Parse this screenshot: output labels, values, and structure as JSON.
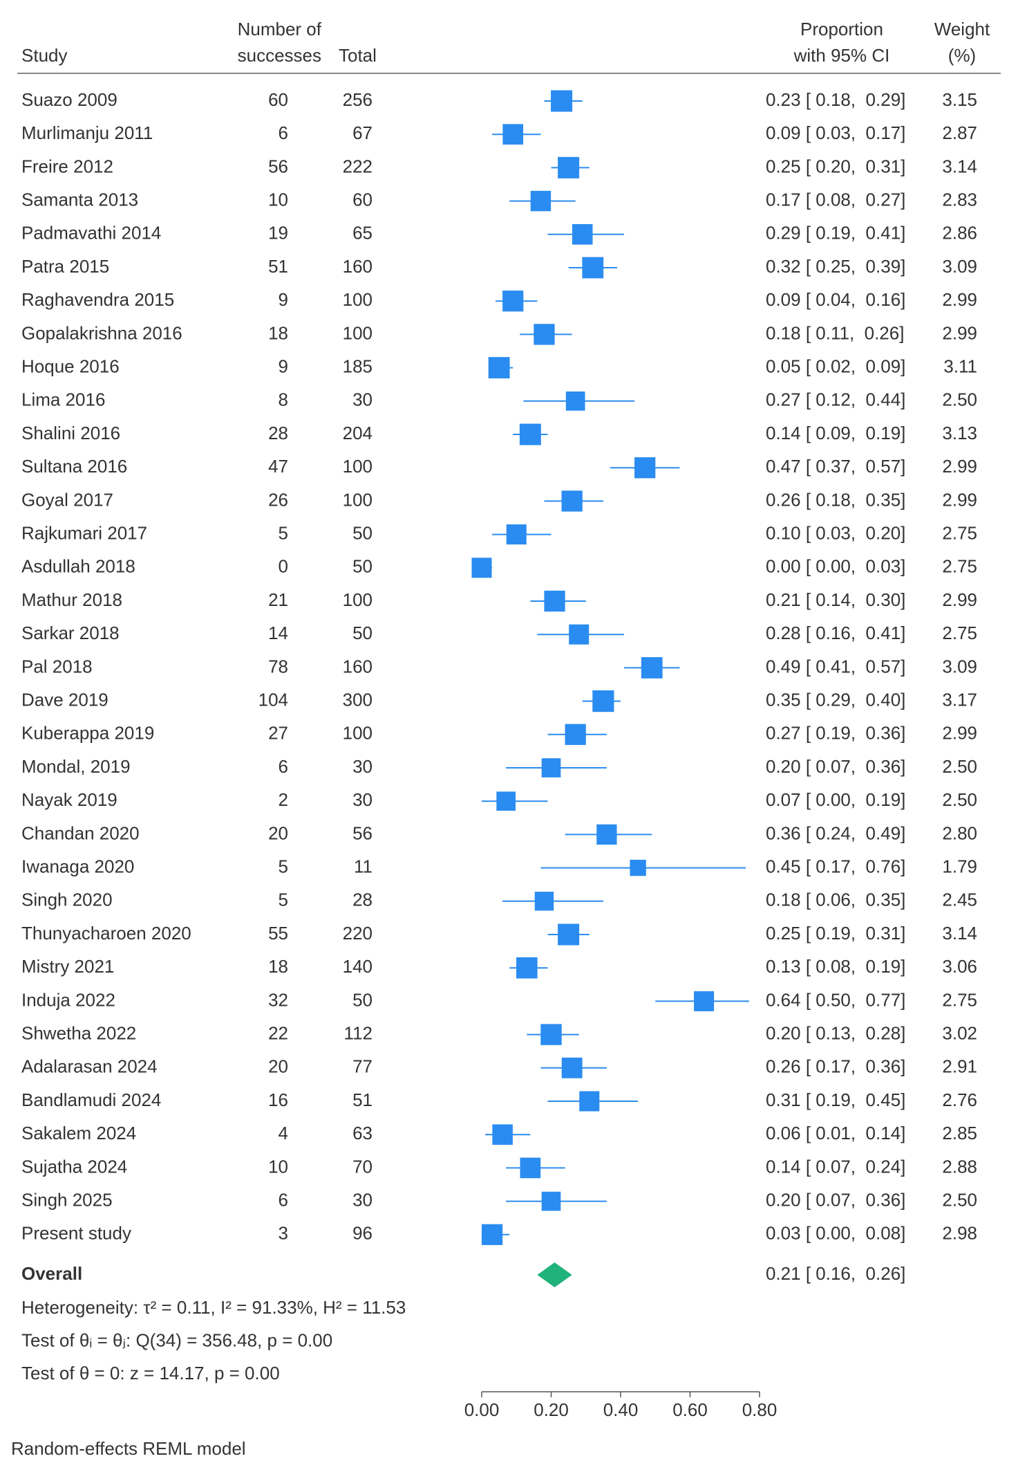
{
  "chart_data": {
    "type": "forest",
    "headers": {
      "study": "Study",
      "successes": [
        "Number of",
        "successes"
      ],
      "total": "Total",
      "ci": [
        "Proportion",
        "with 95% CI"
      ],
      "weight": [
        "Weight",
        "(%)"
      ]
    },
    "categories": [
      "Suazo 2009",
      "Murlimanju 2011",
      "Freire 2012",
      "Samanta 2013",
      "Padmavathi 2014",
      "Patra 2015",
      "Raghavendra 2015",
      "Gopalakrishna 2016",
      "Hoque 2016",
      "Lima 2016",
      "Shalini 2016",
      "Sultana 2016",
      "Goyal 2017",
      "Rajkumari 2017",
      "Asdullah 2018",
      "Mathur 2018",
      "Sarkar 2018",
      "Pal 2018",
      "Dave 2019",
      "Kuberappa 2019",
      "Mondal, 2019",
      "Nayak 2019",
      "Chandan 2020",
      "Iwanaga 2020",
      "Singh 2020",
      "Thunyacharoen 2020",
      "Mistry 2021",
      "Induja 2022",
      "Shwetha 2022",
      "Adalarasan 2024",
      "Bandlamudi 2024",
      "Sakalem 2024",
      "Sujatha 2024",
      "Singh 2025",
      "Present study"
    ],
    "successes": [
      60,
      6,
      56,
      10,
      19,
      51,
      9,
      18,
      9,
      8,
      28,
      47,
      26,
      5,
      0,
      21,
      14,
      78,
      104,
      27,
      6,
      2,
      20,
      5,
      5,
      55,
      18,
      32,
      22,
      20,
      16,
      4,
      10,
      6,
      3
    ],
    "totals": [
      256,
      67,
      222,
      60,
      65,
      160,
      100,
      100,
      185,
      30,
      204,
      100,
      100,
      50,
      50,
      100,
      50,
      160,
      300,
      100,
      30,
      30,
      56,
      11,
      28,
      220,
      140,
      50,
      112,
      77,
      51,
      63,
      70,
      30,
      96
    ],
    "values": [
      0.23,
      0.09,
      0.25,
      0.17,
      0.29,
      0.32,
      0.09,
      0.18,
      0.05,
      0.27,
      0.14,
      0.47,
      0.26,
      0.1,
      0.0,
      0.21,
      0.28,
      0.49,
      0.35,
      0.27,
      0.2,
      0.07,
      0.36,
      0.45,
      0.18,
      0.25,
      0.13,
      0.64,
      0.2,
      0.26,
      0.31,
      0.06,
      0.14,
      0.2,
      0.03
    ],
    "ci_low": [
      0.18,
      0.03,
      0.2,
      0.08,
      0.19,
      0.25,
      0.04,
      0.11,
      0.02,
      0.12,
      0.09,
      0.37,
      0.18,
      0.03,
      0.0,
      0.14,
      0.16,
      0.41,
      0.29,
      0.19,
      0.07,
      0.0,
      0.24,
      0.17,
      0.06,
      0.19,
      0.08,
      0.5,
      0.13,
      0.17,
      0.19,
      0.01,
      0.07,
      0.07,
      0.0
    ],
    "ci_high": [
      0.29,
      0.17,
      0.31,
      0.27,
      0.41,
      0.39,
      0.16,
      0.26,
      0.09,
      0.44,
      0.19,
      0.57,
      0.35,
      0.2,
      0.03,
      0.3,
      0.41,
      0.57,
      0.4,
      0.36,
      0.36,
      0.19,
      0.49,
      0.76,
      0.35,
      0.31,
      0.19,
      0.77,
      0.28,
      0.36,
      0.45,
      0.14,
      0.24,
      0.36,
      0.08
    ],
    "value_labels": [
      "0.23 [ 0.18,  0.29]",
      "0.09 [ 0.03,  0.17]",
      "0.25 [ 0.20,  0.31]",
      "0.17 [ 0.08,  0.27]",
      "0.29 [ 0.19,  0.41]",
      "0.32 [ 0.25,  0.39]",
      "0.09 [ 0.04,  0.16]",
      "0.18 [ 0.11,  0.26]",
      "0.05 [ 0.02,  0.09]",
      "0.27 [ 0.12,  0.44]",
      "0.14 [ 0.09,  0.19]",
      "0.47 [ 0.37,  0.57]",
      "0.26 [ 0.18,  0.35]",
      "0.10 [ 0.03,  0.20]",
      "0.00 [ 0.00,  0.03]",
      "0.21 [ 0.14,  0.30]",
      "0.28 [ 0.16,  0.41]",
      "0.49 [ 0.41,  0.57]",
      "0.35 [ 0.29,  0.40]",
      "0.27 [ 0.19,  0.36]",
      "0.20 [ 0.07,  0.36]",
      "0.07 [ 0.00,  0.19]",
      "0.36 [ 0.24,  0.49]",
      "0.45 [ 0.17,  0.76]",
      "0.18 [ 0.06,  0.35]",
      "0.25 [ 0.19,  0.31]",
      "0.13 [ 0.08,  0.19]",
      "0.64 [ 0.50,  0.77]",
      "0.20 [ 0.13,  0.28]",
      "0.26 [ 0.17,  0.36]",
      "0.31 [ 0.19,  0.45]",
      "0.06 [ 0.01,  0.14]",
      "0.14 [ 0.07,  0.24]",
      "0.20 [ 0.07,  0.36]",
      "0.03 [ 0.00,  0.08]"
    ],
    "weights": [
      3.15,
      2.87,
      3.14,
      2.83,
      2.86,
      3.09,
      2.99,
      2.99,
      3.11,
      2.5,
      3.13,
      2.99,
      2.99,
      2.75,
      2.75,
      2.99,
      2.75,
      3.09,
      3.17,
      2.99,
      2.5,
      2.5,
      2.8,
      1.79,
      2.45,
      3.14,
      3.06,
      2.75,
      3.02,
      2.91,
      2.76,
      2.85,
      2.88,
      2.5,
      2.98
    ],
    "weight_labels": [
      "3.15",
      "2.87",
      "3.14",
      "2.83",
      "2.86",
      "3.09",
      "2.99",
      "2.99",
      "3.11",
      "2.50",
      "3.13",
      "2.99",
      "2.99",
      "2.75",
      "2.75",
      "2.99",
      "2.75",
      "3.09",
      "3.17",
      "2.99",
      "2.50",
      "2.50",
      "2.80",
      "1.79",
      "2.45",
      "3.14",
      "3.06",
      "2.75",
      "3.02",
      "2.91",
      "2.76",
      "2.85",
      "2.88",
      "2.50",
      "2.98"
    ],
    "color": "#2a8cf0",
    "overall": {
      "name": "Overall",
      "value": 0.21,
      "ci_low": 0.16,
      "ci_high": 0.26,
      "value_label": "0.21 [ 0.16,  0.26]",
      "color": "#1fb27a"
    },
    "notes": [
      "Heterogeneity: τ² = 0.11, I² = 91.33%, H² = 11.53",
      "Test of θᵢ = θⱼ: Q(34) = 356.48, p = 0.00",
      "Test of θ = 0: z = 14.17, p = 0.00"
    ],
    "xlim": [
      0,
      0.8
    ],
    "xticks": [
      {
        "value": 0,
        "label": "0.00"
      },
      {
        "value": 0.2,
        "label": "0.20"
      },
      {
        "value": 0.4,
        "label": "0.40"
      },
      {
        "value": 0.6,
        "label": "0.60"
      },
      {
        "value": 0.8,
        "label": "0.80"
      }
    ],
    "footnote": "Random-effects REML model"
  }
}
